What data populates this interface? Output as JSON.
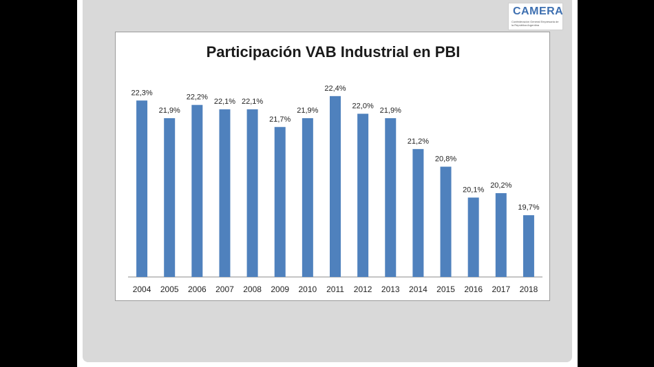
{
  "logo": {
    "mark": "CAMERA",
    "subtitle": "Confederación General Empresaria de la República Argentina"
  },
  "chart_data": {
    "type": "bar",
    "title": "Participación VAB Industrial en PBI",
    "categories": [
      "2004",
      "2005",
      "2006",
      "2007",
      "2008",
      "2009",
      "2010",
      "2011",
      "2012",
      "2013",
      "2014",
      "2015",
      "2016",
      "2017",
      "2018"
    ],
    "values": [
      22.3,
      21.9,
      22.2,
      22.1,
      22.1,
      21.7,
      21.9,
      22.4,
      22.0,
      21.9,
      21.2,
      20.8,
      20.1,
      20.2,
      19.7
    ],
    "labels": [
      "22,3%",
      "21,9%",
      "22,2%",
      "22,1%",
      "22,1%",
      "21,7%",
      "21,9%",
      "22,4%",
      "22,0%",
      "21,9%",
      "21,2%",
      "20,8%",
      "20,1%",
      "20,2%",
      "19,7%"
    ],
    "ylim": [
      18.3,
      22.6
    ],
    "bar_color": "#4f81bd",
    "grid": false,
    "legend": "none"
  }
}
